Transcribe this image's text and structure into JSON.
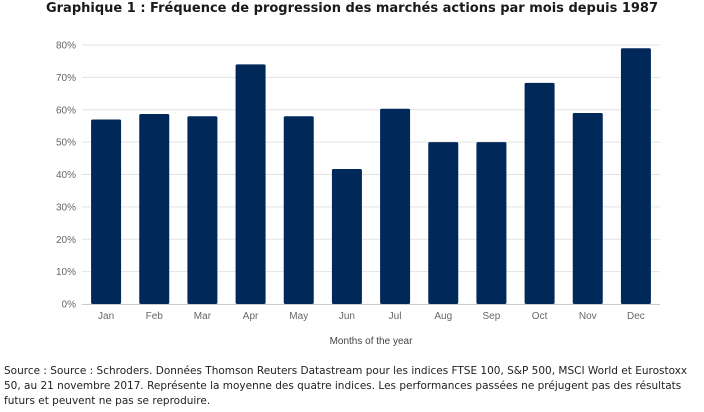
{
  "title": "Graphique 1 : Fréquence de progression des marchés actions par mois depuis 1987",
  "source_note": "Source : Source : Schroders. Données Thomson Reuters Datastream pour les indices FTSE 100, S&P 500, MSCI World et Eurostoxx 50, au 21 novembre 2017. Représente la moyenne des quatre indices. Les performances passées ne préjugent pas des résultats futurs et peuvent ne pas se reproduire.",
  "chart_data": {
    "type": "bar",
    "title": "Graphique 1 : Fréquence de progression des marchés actions par mois depuis 1987",
    "categories": [
      "Jan",
      "Feb",
      "Mar",
      "Apr",
      "May",
      "Jun",
      "Jul",
      "Aug",
      "Sep",
      "Oct",
      "Nov",
      "Dec"
    ],
    "values": [
      57,
      58.7,
      58,
      74,
      58,
      41.7,
      60.3,
      50,
      50,
      68.3,
      59,
      79
    ],
    "xlabel": "Months of the year",
    "ylabel": "",
    "ylim": [
      0,
      80
    ],
    "yticks": [
      "0%",
      "10%",
      "20%",
      "30%",
      "40%",
      "50%",
      "60%",
      "70%",
      "80%"
    ],
    "grid": true,
    "bar_color": "#00295a",
    "grid_color": "#e3e3e3"
  }
}
